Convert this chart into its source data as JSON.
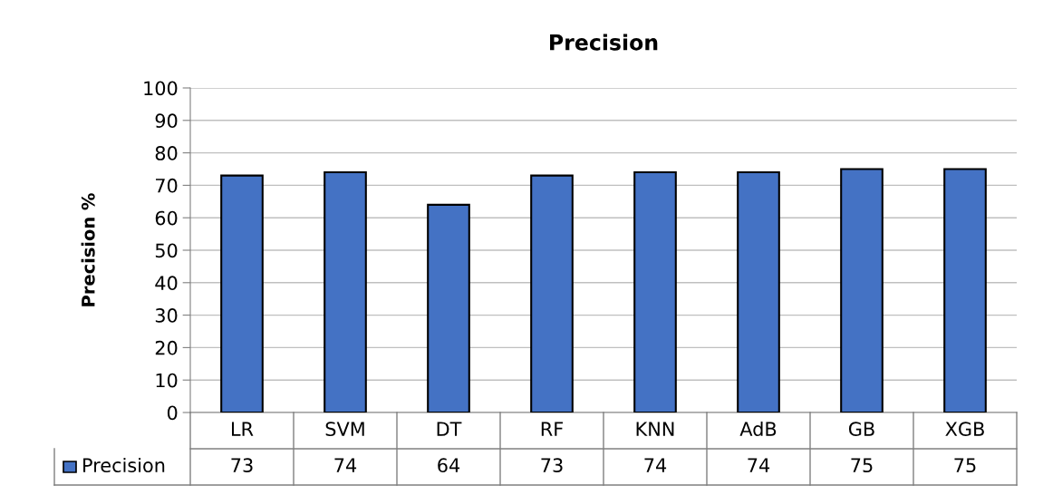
{
  "chart_data": {
    "type": "bar",
    "title": "Precision",
    "ylabel": "Precision %",
    "categories": [
      "LR",
      "SVM",
      "DT",
      "RF",
      "KNN",
      "AdB",
      "GB",
      "XGB"
    ],
    "series": [
      {
        "name": "Precision",
        "color": "#4472c4",
        "values": [
          73,
          74,
          64,
          73,
          74,
          74,
          75,
          75
        ]
      }
    ],
    "ylim": [
      0,
      100
    ],
    "yticks": [
      0,
      10,
      20,
      30,
      40,
      50,
      60,
      70,
      80,
      90,
      100
    ],
    "grid": "y",
    "legend": "bottom",
    "data_labels": true
  }
}
